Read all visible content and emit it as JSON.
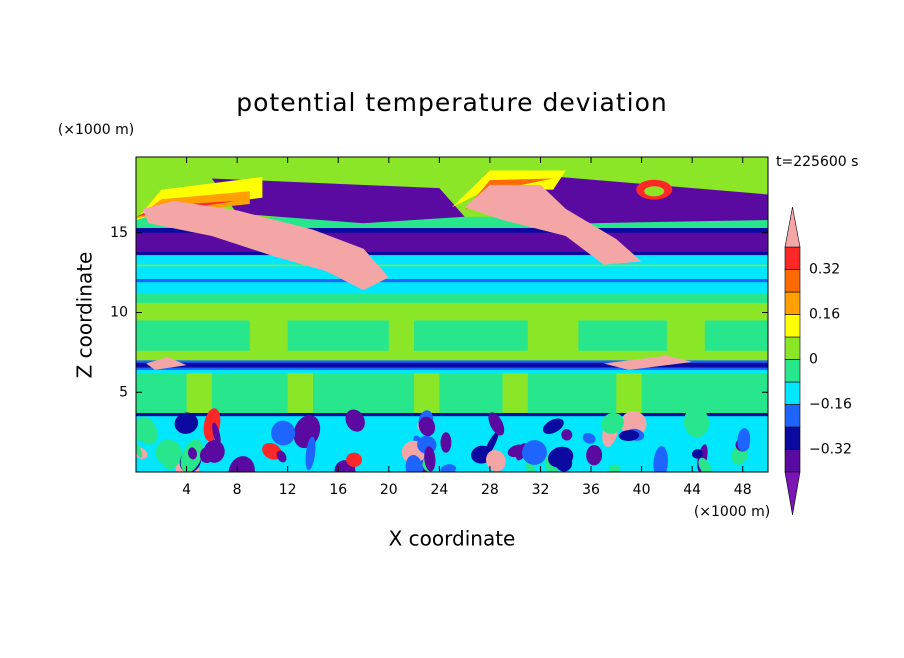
{
  "chart_data": {
    "type": "contour",
    "title": "potential temperature deviation",
    "xlabel": "X coordinate",
    "ylabel": "Z coordinate",
    "xunit": "(×1000 m)",
    "yunit": "(×1000 m)",
    "annotation": "t=225600 s",
    "xlim": [
      0,
      50
    ],
    "ylim": [
      0,
      19.75
    ],
    "xticks": [
      4,
      8,
      12,
      16,
      20,
      24,
      28,
      32,
      36,
      40,
      44,
      48
    ],
    "yticks": [
      5,
      10,
      15
    ],
    "colorbar": {
      "levels": [
        -0.4,
        -0.32,
        -0.24,
        -0.16,
        -0.08,
        0,
        0.08,
        0.16,
        0.24,
        0.32,
        0.4
      ],
      "colors": [
        "#5a0aa0",
        "#0a0aa0",
        "#1e64ff",
        "#00e6ff",
        "#28e68c",
        "#8ce628",
        "#ffff00",
        "#ffa000",
        "#ff6a00",
        "#ff2828"
      ],
      "under_color": "#7a14b4",
      "over_color": "#f4a6a6",
      "ticks": [
        {
          "value": -0.32,
          "label": "−0.32"
        },
        {
          "value": -0.16,
          "label": "−0.16"
        },
        0,
        0.16,
        0.32
      ]
    }
  }
}
